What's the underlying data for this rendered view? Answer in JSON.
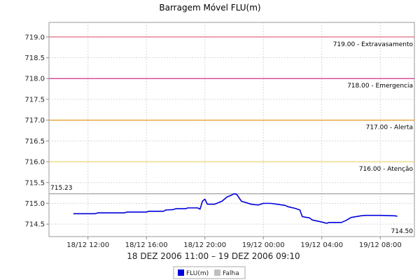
{
  "chart_data": {
    "type": "line",
    "title": "Barragem Móvel FLU(m)",
    "xlabel": "18 DEZ 2006 11:00 – 19 DEZ 2006 09:10",
    "ylabel": "",
    "ylim": [
      714.2,
      719.35
    ],
    "xlim": [
      "2006-12-18 09:20",
      "2006-12-19 10:20"
    ],
    "y_ticks": [
      714.5,
      715.0,
      715.5,
      716.0,
      716.5,
      717.0,
      717.5,
      718.0,
      718.5,
      719.0
    ],
    "y_tick_labels": [
      "714.5",
      "715.0",
      "715.5",
      "716.0",
      "716.5",
      "717.0",
      "717.5",
      "718.0",
      "718.5",
      "719.0"
    ],
    "x_ticks": [
      "2006-12-18 12:00",
      "2006-12-18 16:00",
      "2006-12-18 20:00",
      "2006-12-19 00:00",
      "2006-12-19 04:00",
      "2006-12-19 08:00"
    ],
    "x_tick_labels": [
      "18/12 12:00",
      "18/12 16:00",
      "18/12 20:00",
      "19/12 00:00",
      "19/12 04:00",
      "19/12 08:00"
    ],
    "grid": true,
    "legend_position": "bottom-center",
    "series": [
      {
        "name": "FLU(m)",
        "color": "#0000dd",
        "x": [
          "2006-12-18 11:00",
          "2006-12-18 12:30",
          "2006-12-18 12:40",
          "2006-12-18 14:30",
          "2006-12-18 14:40",
          "2006-12-18 16:00",
          "2006-12-18 16:10",
          "2006-12-18 17:10",
          "2006-12-18 17:20",
          "2006-12-18 17:50",
          "2006-12-18 18:00",
          "2006-12-18 18:40",
          "2006-12-18 18:50",
          "2006-12-18 19:30",
          "2006-12-18 19:40",
          "2006-12-18 19:50",
          "2006-12-18 20:00",
          "2006-12-18 20:10",
          "2006-12-18 20:40",
          "2006-12-18 21:10",
          "2006-12-18 21:30",
          "2006-12-18 21:50",
          "2006-12-18 22:00",
          "2006-12-18 22:10",
          "2006-12-18 22:30",
          "2006-12-18 23:10",
          "2006-12-18 23:20",
          "2006-12-18 23:40",
          "2006-12-19 00:00",
          "2006-12-19 00:30",
          "2006-12-19 01:30",
          "2006-12-19 01:40",
          "2006-12-19 02:10",
          "2006-12-19 02:30",
          "2006-12-19 02:40",
          "2006-12-19 03:10",
          "2006-12-19 03:20",
          "2006-12-19 04:00",
          "2006-12-19 04:20",
          "2006-12-19 04:30",
          "2006-12-19 05:20",
          "2006-12-19 05:40"
        ],
        "y": [
          714.75,
          714.75,
          714.77,
          714.77,
          714.79,
          714.79,
          714.81,
          714.81,
          714.84,
          714.85,
          714.87,
          714.87,
          714.89,
          714.89,
          714.86,
          715.05,
          715.1,
          714.98,
          714.98,
          715.05,
          715.15,
          715.2,
          715.23,
          715.22,
          715.05,
          714.98,
          714.97,
          714.96,
          715.0,
          715.0,
          714.95,
          714.92,
          714.88,
          714.84,
          714.68,
          714.65,
          714.6,
          714.55,
          714.52,
          714.54,
          714.54,
          714.59
        ]
      },
      {
        "name": "FLU(m)",
        "color": "#0000dd",
        "x": [
          "2006-12-19 05:40",
          "2006-12-19 06:00",
          "2006-12-19 06:30",
          "2006-12-19 06:40",
          "2006-12-19 07:00",
          "2006-12-19 08:00",
          "2006-12-19 09:00",
          "2006-12-19 09:10"
        ],
        "y": [
          714.59,
          714.66,
          714.69,
          714.7,
          714.71,
          714.71,
          714.7,
          714.69
        ]
      }
    ],
    "threshold_lines": [
      {
        "value": 719.0,
        "label": "719.00 - Extravasamento",
        "color": "#e0607a"
      },
      {
        "value": 718.0,
        "label": "718.00 - Emergencia",
        "color": "#d03088"
      },
      {
        "value": 717.0,
        "label": "717.00 - Alerta",
        "color": "#e89a20"
      },
      {
        "value": 716.0,
        "label": "716.00 - Atenção",
        "color": "#ecd060"
      },
      {
        "value": 715.23,
        "label": "715.23",
        "color": "#999999"
      }
    ],
    "annotations": [
      {
        "text": "714.50",
        "value": 714.5
      }
    ],
    "legend": [
      {
        "label": "FLU(m)",
        "color": "#0000dd"
      },
      {
        "label": "Falha",
        "color": "#c0c0c0"
      }
    ]
  }
}
